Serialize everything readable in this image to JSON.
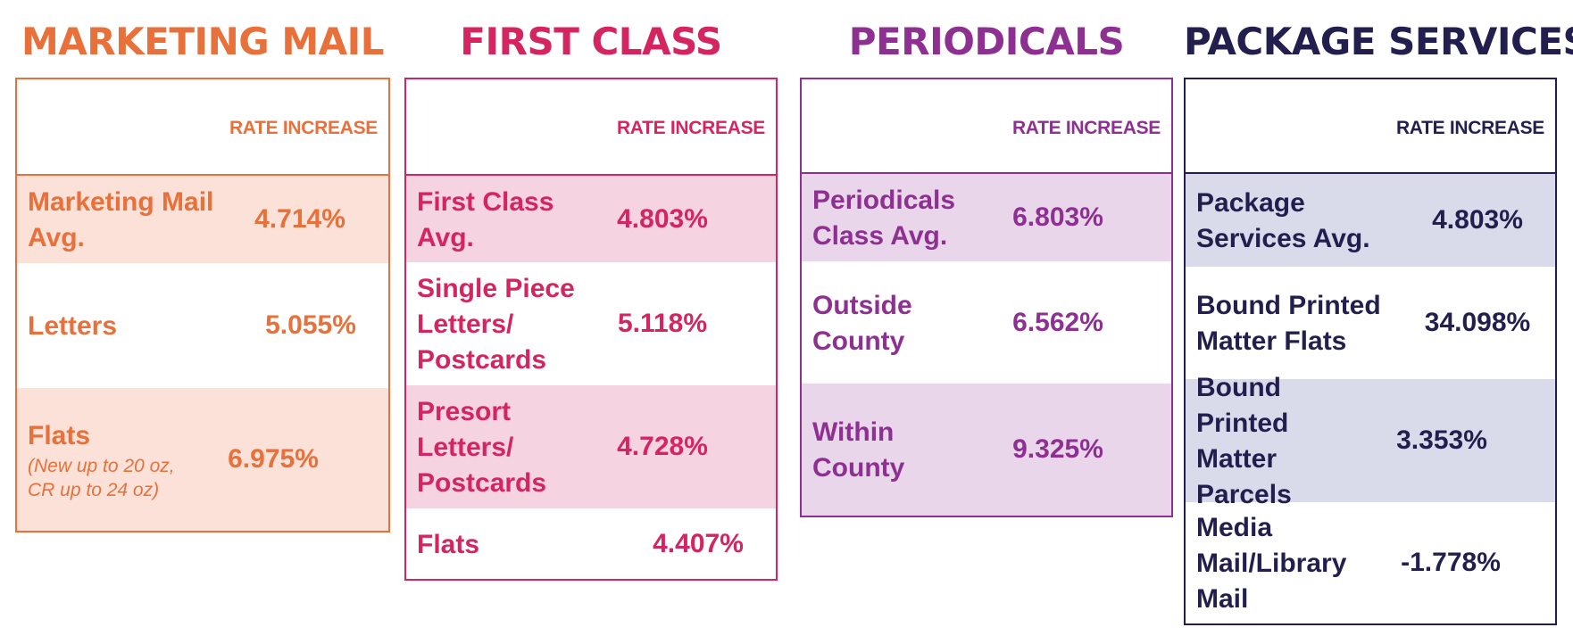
{
  "column_header": "RATE INCREASE",
  "colors": {
    "marketing": "#e8703a",
    "marketing_fill": "#fbe1d7",
    "first": "#d42561",
    "first_fill": "#f6d3e0",
    "periodicals": "#8e2f92",
    "periodicals_fill": "#e9d6ea",
    "package": "#221f4e",
    "package_fill": "#dadbea"
  },
  "panels": [
    {
      "title": "MARKETING MAIL",
      "rows": [
        {
          "label": "Marketing Mail Avg.",
          "value": "4.714%"
        },
        {
          "label": "Letters",
          "value": "5.055%"
        },
        {
          "label": "Flats",
          "note": "(New up to 20 oz, CR up to 24 oz)",
          "value": "6.975%"
        }
      ]
    },
    {
      "title": "FIRST CLASS",
      "rows": [
        {
          "label": "First Class Avg.",
          "value": "4.803%"
        },
        {
          "label": "Single Piece Letters/ Postcards",
          "value": "5.118%"
        },
        {
          "label": "Presort Letters/ Postcards",
          "value": "4.728%"
        },
        {
          "label": "Flats",
          "value": "4.407%"
        }
      ]
    },
    {
      "title": "PERIODICALS",
      "rows": [
        {
          "label": "Periodicals Class Avg.",
          "value": "6.803%"
        },
        {
          "label": "Outside County",
          "value": "6.562%"
        },
        {
          "label": "Within County",
          "value": "9.325%"
        }
      ]
    },
    {
      "title": "PACKAGE SERVICES",
      "rows": [
        {
          "label": "Package Services Avg.",
          "value": "4.803%"
        },
        {
          "label": "Bound Printed Matter Flats",
          "value": "34.098%"
        },
        {
          "label": "Bound Printed Matter Parcels",
          "value": "3.353%"
        },
        {
          "label": "Media Mail/Library Mail",
          "value": "-1.778%"
        }
      ]
    }
  ]
}
